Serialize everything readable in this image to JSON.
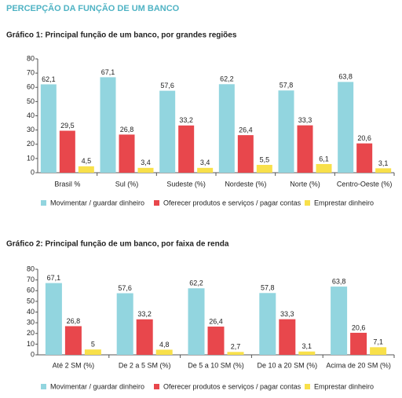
{
  "title": "PERCEPÇÃO DA FUNÇÃO DE UM BANCO",
  "chart_data": [
    {
      "type": "bar",
      "title": "Gráfico 1: Principal função de um banco, por grandes regiões",
      "categories": [
        "Brasil %",
        "Sul (%)",
        "Sudeste (%)",
        "Nordeste (%)",
        "Norte (%)",
        "Centro-Oeste (%)"
      ],
      "series": [
        {
          "name": "Movimentar / guardar dinheiro",
          "color": "#92d5df",
          "values": [
            62.1,
            67.1,
            57.6,
            62.2,
            57.8,
            63.8
          ],
          "value_labels": [
            "62,1",
            "67,1",
            "57,6",
            "62,2",
            "57,8",
            "63,8"
          ]
        },
        {
          "name": "Oferecer produtos e serviços / pagar contas",
          "color": "#e8474c",
          "values": [
            29.5,
            26.8,
            33.2,
            26.4,
            33.3,
            20.6
          ],
          "value_labels": [
            "29,5",
            "26,8",
            "33,2",
            "26,4",
            "33,3",
            "20,6"
          ]
        },
        {
          "name": "Emprestar dinheiro",
          "color": "#f8e04a",
          "values": [
            4.5,
            3.4,
            3.4,
            5.5,
            6.1,
            3.1
          ],
          "value_labels": [
            "4,5",
            "3,4",
            "3,4",
            "5,5",
            "6,1",
            "3,1"
          ]
        }
      ],
      "ylim": [
        0,
        80
      ],
      "yticks": [
        0,
        10,
        20,
        30,
        40,
        50,
        60,
        70,
        80
      ]
    },
    {
      "type": "bar",
      "title": "Gráfico 2: Principal função de um banco, por faixa de renda",
      "categories": [
        "Até 2 SM (%)",
        "De 2 a 5 SM (%)",
        "De 5 a 10 SM (%)",
        "De 10 a 20 SM (%)",
        "Acima de 20 SM (%)"
      ],
      "series": [
        {
          "name": "Movimentar / guardar dinheiro",
          "color": "#92d5df",
          "values": [
            67.1,
            57.6,
            62.2,
            57.8,
            63.8
          ],
          "value_labels": [
            "67,1",
            "57,6",
            "62,2",
            "57,8",
            "63,8"
          ]
        },
        {
          "name": "Oferecer produtos e serviços / pagar contas",
          "color": "#e8474c",
          "values": [
            26.8,
            33.2,
            26.4,
            33.3,
            20.6
          ],
          "value_labels": [
            "26,8",
            "33,2",
            "26,4",
            "33,3",
            "20,6"
          ]
        },
        {
          "name": "Emprestar dinheiro",
          "color": "#f8e04a",
          "values": [
            5,
            4.8,
            2.7,
            3.1,
            7.1
          ],
          "value_labels": [
            "5",
            "4,8",
            "2,7",
            "3,1",
            "7,1"
          ]
        }
      ],
      "ylim": [
        0,
        80
      ],
      "yticks": [
        0,
        10,
        20,
        30,
        40,
        50,
        60,
        70,
        80
      ]
    }
  ]
}
